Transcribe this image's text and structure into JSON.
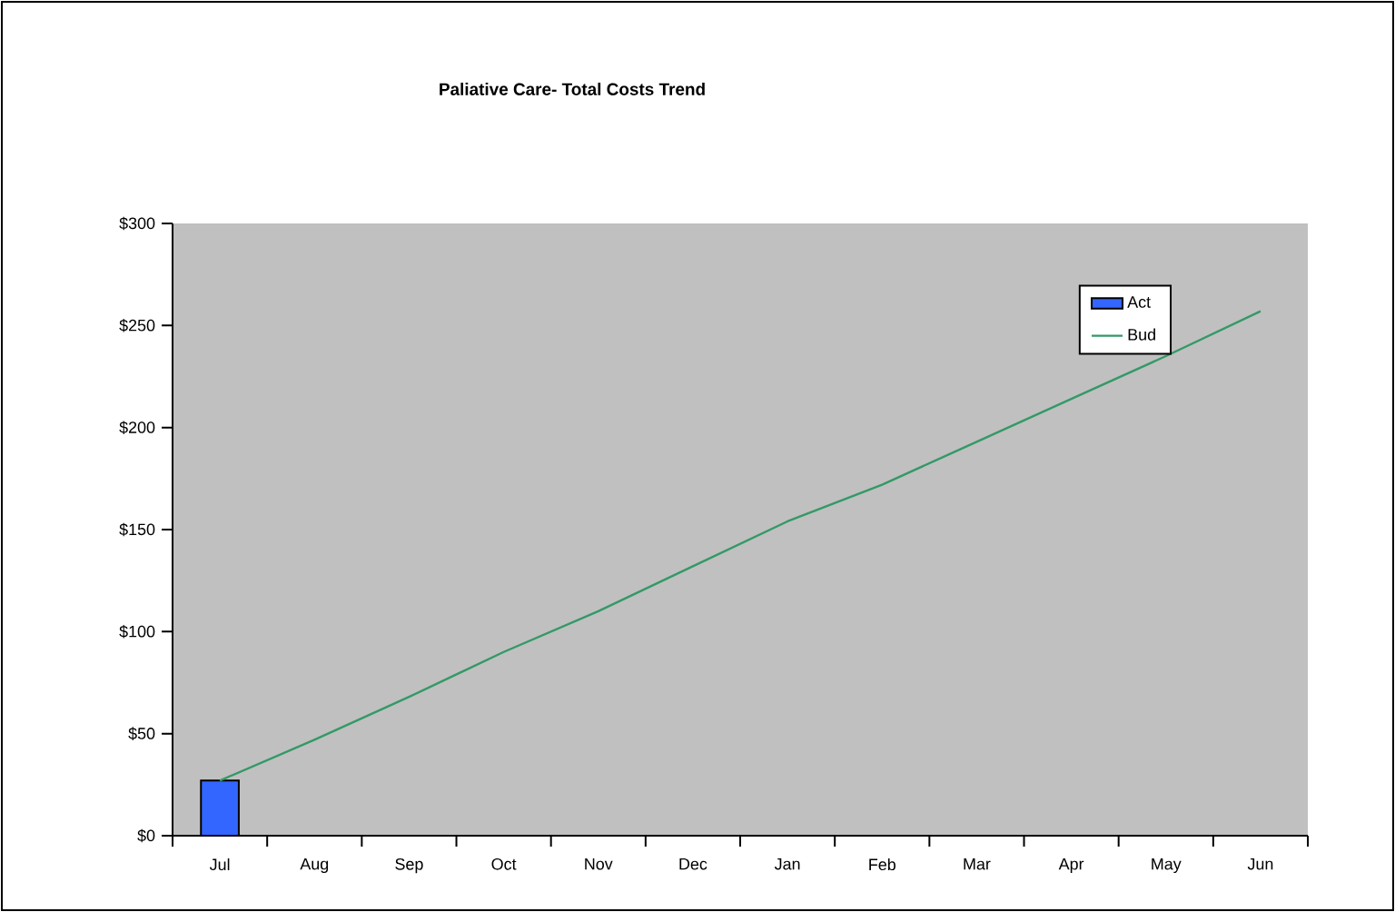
{
  "chart_data": {
    "type": "bar",
    "title": "Paliative Care- Total Costs Trend",
    "categories": [
      "Jul",
      "Aug",
      "Sep",
      "Oct",
      "Nov",
      "Dec",
      "Jan",
      "Feb",
      "Mar",
      "Apr",
      "May",
      "Jun"
    ],
    "series": [
      {
        "name": "Act",
        "color": "#3366ff",
        "values": [
          27,
          null,
          null,
          null,
          null,
          null,
          null,
          null,
          null,
          null,
          null,
          null
        ]
      },
      {
        "name": "Bud",
        "type": "line",
        "color": "#339966",
        "values": [
          27,
          47,
          68,
          90,
          110,
          132,
          154,
          172,
          193,
          214,
          235,
          257
        ]
      }
    ],
    "ylim": [
      0,
      300
    ],
    "yticks": [
      {
        "value": 0,
        "label": "$0"
      },
      {
        "value": 50,
        "label": "$50"
      },
      {
        "value": 100,
        "label": "$100"
      },
      {
        "value": 150,
        "label": "$150"
      },
      {
        "value": 200,
        "label": "$200"
      },
      {
        "value": 250,
        "label": "$250"
      },
      {
        "value": 300,
        "label": "$300"
      }
    ],
    "legend": "top right",
    "grid": false,
    "marker": "none"
  }
}
